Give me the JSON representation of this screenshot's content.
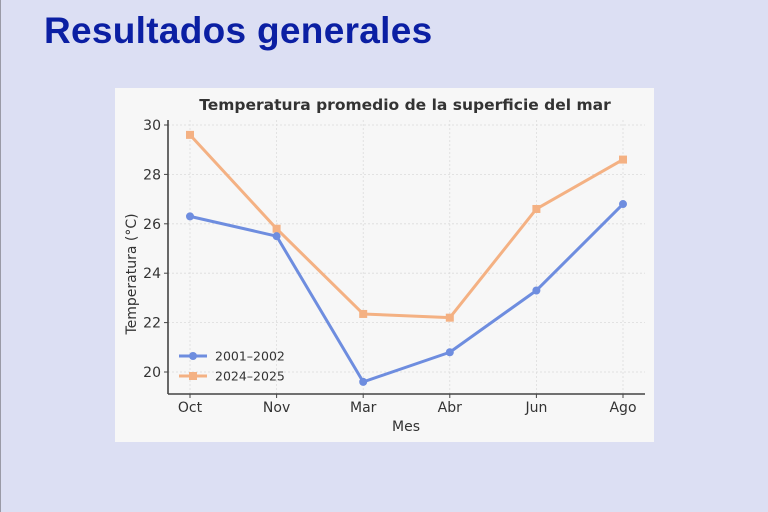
{
  "slide": {
    "title": "Resultados generales",
    "background_color": "#dcdff3",
    "title_color": "#0b1fa3"
  },
  "chart_data": {
    "type": "line",
    "title": "Temperatura promedio de la superficie del mar",
    "xlabel": "Mes",
    "ylabel": "Temperatura (°C)",
    "categories": [
      "Oct",
      "Nov",
      "Mar",
      "Abr",
      "Jun",
      "Ago"
    ],
    "yticks": [
      20,
      22,
      24,
      26,
      28,
      30
    ],
    "ylim": [
      19.1,
      30.2
    ],
    "grid": true,
    "legend_position": "lower left",
    "series": [
      {
        "name": "2001–2002",
        "color": "#6e8ddf",
        "marker": "circle",
        "values": [
          26.3,
          25.5,
          19.6,
          20.8,
          23.3,
          26.8
        ]
      },
      {
        "name": "2024–2025",
        "color": "#f4b183",
        "marker": "square",
        "values": [
          29.6,
          25.8,
          22.35,
          22.2,
          26.6,
          28.6
        ]
      }
    ]
  }
}
